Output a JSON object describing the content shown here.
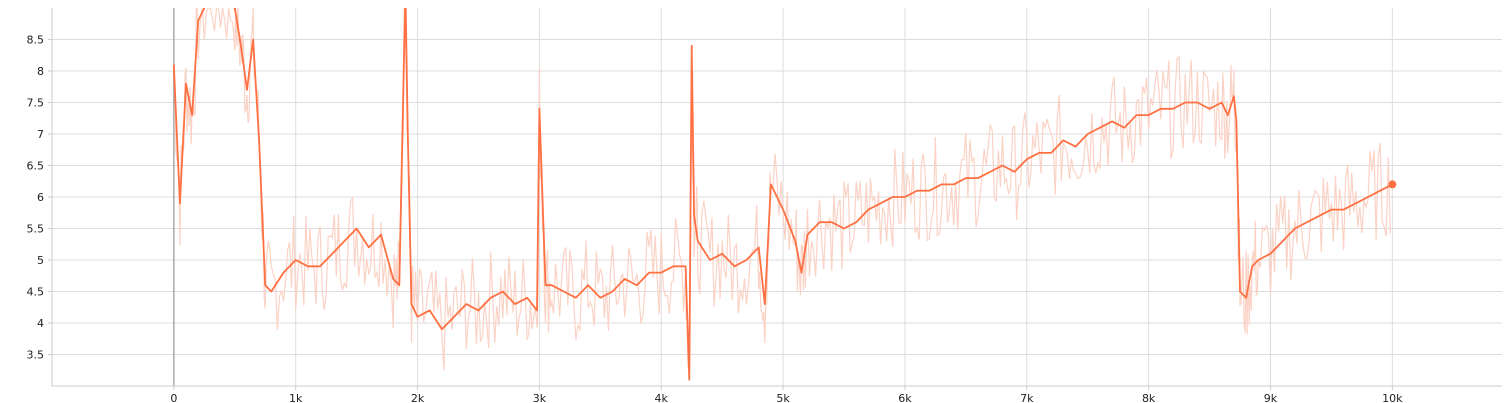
{
  "chart_data": {
    "type": "line",
    "title": "",
    "xlabel": "",
    "ylabel": "",
    "xlim": [
      -1000,
      10900
    ],
    "ylim": [
      3.0,
      9.0
    ],
    "grid": true,
    "legend": "none",
    "x_ticks": [
      0,
      1000,
      2000,
      3000,
      4000,
      5000,
      6000,
      7000,
      8000,
      9000,
      10000
    ],
    "x_tick_labels": [
      "0",
      "1k",
      "2k",
      "3k",
      "4k",
      "5k",
      "6k",
      "7k",
      "8k",
      "9k",
      "10k"
    ],
    "y_ticks": [
      3.5,
      4,
      4.5,
      5,
      5.5,
      6,
      6.5,
      7,
      7.5,
      8,
      8.5
    ],
    "y_tick_labels": [
      "3.5",
      "4",
      "4.5",
      "5",
      "5.5",
      "6",
      "6.5",
      "7",
      "7.5",
      "8",
      "8.5"
    ],
    "colors": {
      "smoothed": "#ff7043",
      "raw": "#fbd3c6"
    },
    "series": [
      {
        "x": [
          0,
          50,
          100,
          150,
          200,
          300,
          400,
          500,
          550,
          600,
          650,
          700,
          750,
          800,
          900,
          1000,
          1100,
          1200,
          1300,
          1400,
          1500,
          1600,
          1700,
          1800,
          1850,
          1900,
          1920,
          1950,
          2000,
          2100,
          2200,
          2300,
          2400,
          2500,
          2600,
          2700,
          2800,
          2900,
          2980,
          3000,
          3050,
          3100,
          3200,
          3300,
          3400,
          3500,
          3600,
          3700,
          3800,
          3900,
          4000,
          4100,
          4200,
          4230,
          4250,
          4270,
          4300,
          4400,
          4500,
          4600,
          4700,
          4800,
          4850,
          4900,
          5000,
          5100,
          5150,
          5200,
          5300,
          5400,
          5500,
          5600,
          5700,
          5800,
          5900,
          6000,
          6100,
          6200,
          6300,
          6400,
          6500,
          6600,
          6700,
          6800,
          6900,
          7000,
          7100,
          7200,
          7300,
          7400,
          7500,
          7600,
          7700,
          7800,
          7900,
          8000,
          8100,
          8200,
          8300,
          8400,
          8500,
          8600,
          8650,
          8700,
          8720,
          8750,
          8800,
          8850,
          8900,
          9000,
          9100,
          9200,
          9300,
          9400,
          9500,
          9600,
          9700,
          9800,
          9900,
          10000
        ],
        "values": [
          8.1,
          5.9,
          7.8,
          7.3,
          8.8,
          9.2,
          9.1,
          9.0,
          8.4,
          7.7,
          8.5,
          6.9,
          4.6,
          4.5,
          4.8,
          5.0,
          4.9,
          4.9,
          5.1,
          5.3,
          5.5,
          5.2,
          5.4,
          4.7,
          4.6,
          9.3,
          7.0,
          4.3,
          4.1,
          4.2,
          3.9,
          4.1,
          4.3,
          4.2,
          4.4,
          4.5,
          4.3,
          4.4,
          4.2,
          7.4,
          4.6,
          4.6,
          4.5,
          4.4,
          4.6,
          4.4,
          4.5,
          4.7,
          4.6,
          4.8,
          4.8,
          4.9,
          4.9,
          3.1,
          8.4,
          5.7,
          5.3,
          5.0,
          5.1,
          4.9,
          5.0,
          5.2,
          4.3,
          6.2,
          5.8,
          5.3,
          4.8,
          5.4,
          5.6,
          5.6,
          5.5,
          5.6,
          5.8,
          5.9,
          6.0,
          6.0,
          6.1,
          6.1,
          6.2,
          6.2,
          6.3,
          6.3,
          6.4,
          6.5,
          6.4,
          6.6,
          6.7,
          6.7,
          6.9,
          6.8,
          7.0,
          7.1,
          7.2,
          7.1,
          7.3,
          7.3,
          7.4,
          7.4,
          7.5,
          7.5,
          7.4,
          7.5,
          7.3,
          7.6,
          7.2,
          4.5,
          4.4,
          4.9,
          5.0,
          5.1,
          5.3,
          5.5,
          5.6,
          5.7,
          5.8,
          5.8,
          5.9,
          6.0,
          6.1,
          6.2
        ]
      }
    ]
  }
}
